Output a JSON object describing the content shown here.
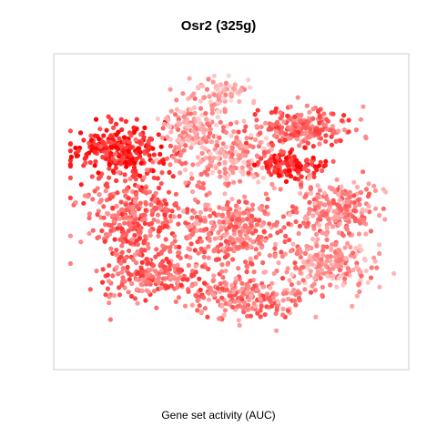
{
  "chart_data": {
    "type": "scatter",
    "title": "Osr2 (325g)",
    "xlabel": "Gene set activity (AUC)",
    "ylabel": "",
    "axes_visible": false,
    "grid": false,
    "legend": "none",
    "color_scale": {
      "low": "#ffe6e6",
      "mid": "#ff8080",
      "high": "#ff0000"
    },
    "description_of_points": "Thousands of t-SNE cell points, colored by AUC gene-set activity (light pink = low, red = high). Highest activity clusters at upper-left lobe and two upper-right hotspots.",
    "clusters": [
      {
        "cx": 0.16,
        "cy": 0.3,
        "rx": 0.14,
        "ry": 0.09,
        "activity": 0.85,
        "n": 260
      },
      {
        "cx": 0.2,
        "cy": 0.52,
        "rx": 0.16,
        "ry": 0.14,
        "activity": 0.55,
        "n": 320
      },
      {
        "cx": 0.27,
        "cy": 0.72,
        "rx": 0.17,
        "ry": 0.09,
        "activity": 0.55,
        "n": 240
      },
      {
        "cx": 0.38,
        "cy": 0.22,
        "rx": 0.1,
        "ry": 0.09,
        "activity": 0.3,
        "n": 150
      },
      {
        "cx": 0.5,
        "cy": 0.33,
        "rx": 0.13,
        "ry": 0.1,
        "activity": 0.3,
        "n": 180
      },
      {
        "cx": 0.51,
        "cy": 0.57,
        "rx": 0.16,
        "ry": 0.13,
        "activity": 0.45,
        "n": 320
      },
      {
        "cx": 0.55,
        "cy": 0.8,
        "rx": 0.16,
        "ry": 0.08,
        "activity": 0.45,
        "n": 220
      },
      {
        "cx": 0.71,
        "cy": 0.22,
        "rx": 0.15,
        "ry": 0.07,
        "activity": 0.55,
        "n": 220
      },
      {
        "cx": 0.67,
        "cy": 0.35,
        "rx": 0.1,
        "ry": 0.05,
        "activity": 0.8,
        "n": 120
      },
      {
        "cx": 0.81,
        "cy": 0.5,
        "rx": 0.12,
        "ry": 0.1,
        "activity": 0.4,
        "n": 220
      },
      {
        "cx": 0.79,
        "cy": 0.69,
        "rx": 0.13,
        "ry": 0.08,
        "activity": 0.3,
        "n": 200
      },
      {
        "cx": 0.47,
        "cy": 0.1,
        "rx": 0.08,
        "ry": 0.05,
        "activity": 0.2,
        "n": 90
      }
    ]
  }
}
